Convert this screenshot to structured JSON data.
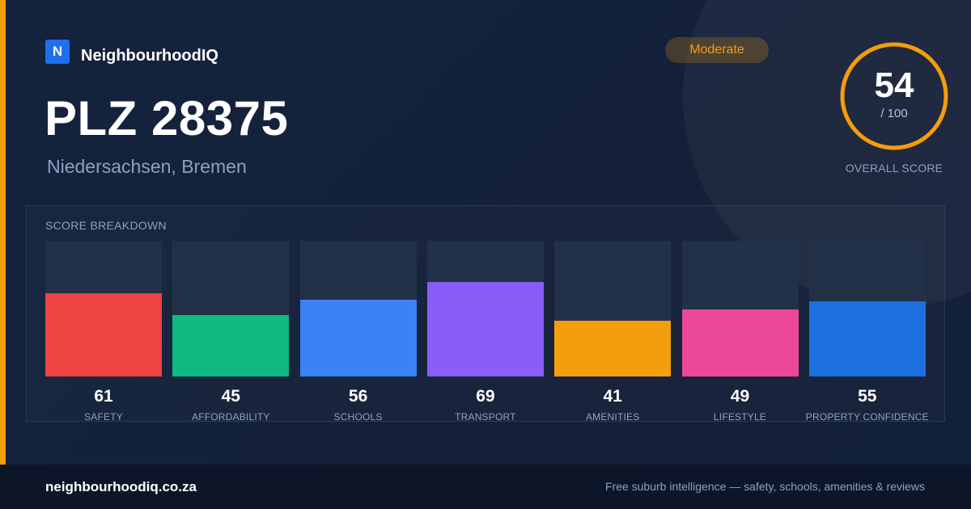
{
  "brand": {
    "logo_letter": "N",
    "name": "NeighbourhoodIQ"
  },
  "location": {
    "title": "PLZ 28375",
    "subtitle": "Niedersachsen, Bremen"
  },
  "rating_badge": "Moderate",
  "overall": {
    "score": "54",
    "denominator": "/ 100",
    "label": "OVERALL SCORE",
    "value": 54,
    "max": 100
  },
  "breakdown_title": "SCORE BREAKDOWN",
  "colors": {
    "accent": "#f59e0b",
    "ring_track": "#1f2a40",
    "bar_track": "#223048"
  },
  "chart_data": {
    "type": "bar",
    "categories": [
      "SAFETY",
      "AFFORDABILITY",
      "SCHOOLS",
      "TRANSPORT",
      "AMENITIES",
      "LIFESTYLE",
      "PROPERTY CONFIDENCE"
    ],
    "values": [
      61,
      45,
      56,
      69,
      41,
      49,
      55
    ],
    "value_labels": [
      "61",
      "45",
      "56",
      "69",
      "41",
      "49",
      "55"
    ],
    "colors": [
      "#ef4444",
      "#10b981",
      "#3b82f6",
      "#8b5cf6",
      "#f59e0b",
      "#ec4899",
      "#1d6fe0"
    ],
    "title": "SCORE BREAKDOWN",
    "xlabel": "",
    "ylabel": "",
    "ylim": [
      0,
      100
    ],
    "grid": false,
    "legend": "none"
  },
  "footer": {
    "url": "neighbourhoodiq.co.za",
    "tagline": "Free suburb intelligence — safety, schools, amenities & reviews"
  }
}
